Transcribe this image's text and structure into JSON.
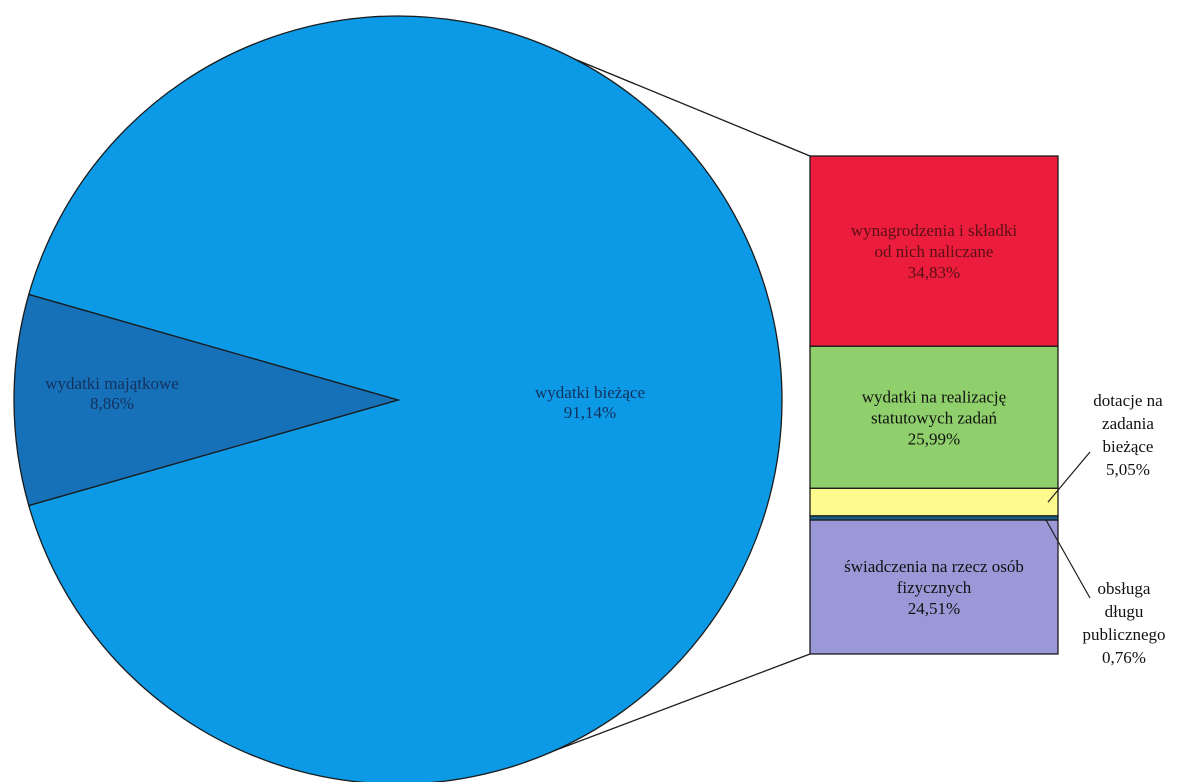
{
  "chart_data": {
    "type": "bar-of-pie",
    "title": "",
    "pie": {
      "slices": [
        {
          "id": "biezace",
          "name": "wydatki bieżące",
          "value_label": "91,14%",
          "value": 91.14,
          "color": "#0c9ae6"
        },
        {
          "id": "majatkowe",
          "name": "wydatki majątkowe",
          "value_label": "8,86%",
          "value": 8.86,
          "color": "#1771b8"
        }
      ]
    },
    "bar": {
      "parent": "wydatki bieżące",
      "segments": [
        {
          "id": "wynagrodzenia",
          "name_lines": [
            "wynagrodzenia i składki",
            "od nich naliczane"
          ],
          "value_label": "34,83%",
          "value": 34.83,
          "color": "#ec1c3c",
          "label_inside": true
        },
        {
          "id": "statutowe",
          "name_lines": [
            "wydatki na realizację",
            "statutowych zadań"
          ],
          "value_label": "25,99%",
          "value": 25.99,
          "color": "#8fd06c",
          "label_inside": true
        },
        {
          "id": "dotacje",
          "name_lines": [
            "dotacje na",
            "zadania",
            "bieżące"
          ],
          "value_label": "5,05%",
          "value": 5.05,
          "color": "#fdfb8d",
          "label_inside": false
        },
        {
          "id": "dlug",
          "name_lines": [
            "obsługa",
            "długu",
            "publicznego"
          ],
          "value_label": "0,76%",
          "value": 0.76,
          "color": "#1a5e8c",
          "label_inside": false
        },
        {
          "id": "swiadczenia",
          "name_lines": [
            "świadczenia na rzecz osób",
            "fizycznych"
          ],
          "value_label": "24,51%",
          "value": 24.51,
          "color": "#9b98d8",
          "label_inside": true
        }
      ]
    },
    "legend": "none"
  }
}
